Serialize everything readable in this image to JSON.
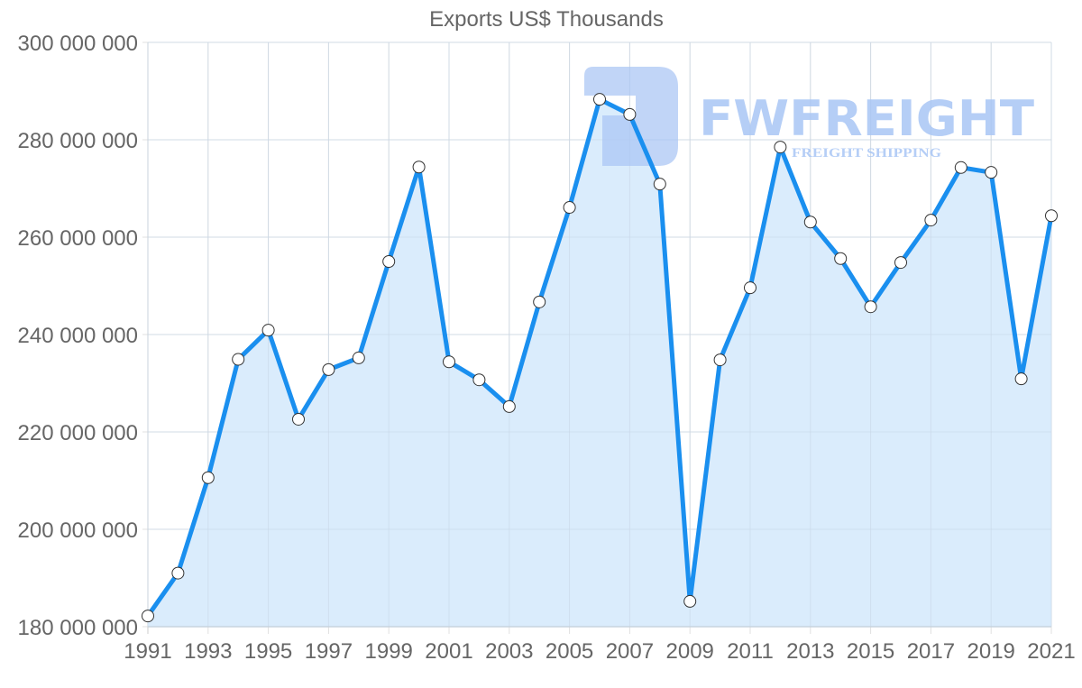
{
  "chart_data": {
    "type": "area",
    "title": "Exports US$ Thousands",
    "xlabel": "",
    "ylabel": "",
    "x": [
      1991,
      1992,
      1993,
      1994,
      1995,
      1996,
      1997,
      1998,
      1999,
      2000,
      2001,
      2002,
      2003,
      2004,
      2005,
      2006,
      2007,
      2008,
      2009,
      2010,
      2011,
      2012,
      2013,
      2014,
      2015,
      2016,
      2017,
      2018,
      2019,
      2020,
      2021
    ],
    "series": [
      {
        "name": "Exports US$ Thousands",
        "values": [
          182200000,
          191000000,
          210600000,
          234900000,
          240900000,
          222600000,
          232800000,
          235200000,
          255000000,
          274400000,
          234400000,
          230700000,
          225200000,
          246700000,
          266100000,
          288300000,
          285200000,
          270900000,
          185200000,
          234800000,
          249600000,
          278500000,
          263100000,
          255600000,
          245700000,
          254800000,
          263500000,
          274300000,
          273300000,
          230900000,
          264400000
        ]
      }
    ],
    "ylim": [
      180000000,
      300000000
    ],
    "xlim": [
      1991,
      2021
    ],
    "y_ticks": [
      180000000,
      200000000,
      220000000,
      240000000,
      260000000,
      280000000,
      300000000
    ],
    "y_tick_labels": [
      "180 000 000",
      "200 000 000",
      "220 000 000",
      "240 000 000",
      "260 000 000",
      "280 000 000",
      "300 000 000"
    ],
    "x_tick_labels": [
      "1991",
      "1993",
      "1995",
      "1997",
      "1999",
      "2001",
      "2003",
      "2005",
      "2007",
      "2009",
      "2011",
      "2013",
      "2015",
      "2017",
      "2019",
      "2021"
    ],
    "grid": true,
    "legend": null
  },
  "colors": {
    "line": "#1a8fef",
    "fill": "#d8ebfc",
    "grid": "#e0e0e0",
    "axis": "#cccccc",
    "text": "#666666",
    "marker_fill": "#ffffff",
    "marker_stroke": "#333333",
    "watermark": "#a9c6f5"
  },
  "watermark": {
    "brand": "FWFREIGHT",
    "tagline": "FREIGHT SHIPPING"
  }
}
